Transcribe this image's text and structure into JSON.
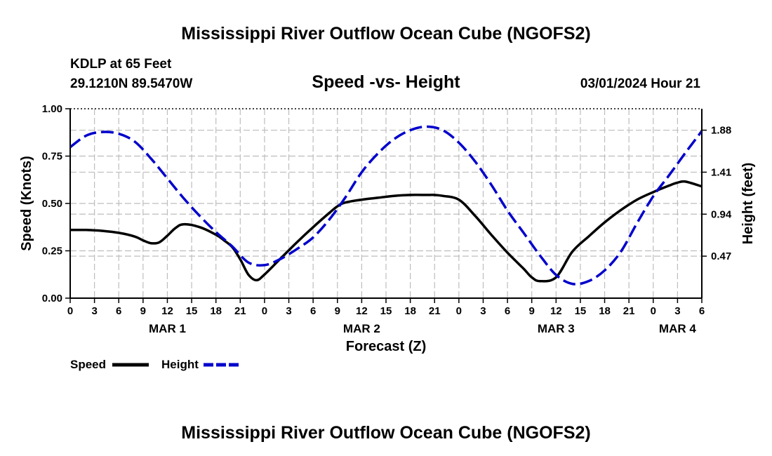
{
  "chart_data": {
    "type": "line",
    "title": "Mississippi River Outflow Ocean Cube (NGOFS2)",
    "footer_title": "Mississippi River Outflow Ocean Cube (NGOFS2)",
    "subtitle": "Speed -vs- Height",
    "station_line1": "KDLP at 65 Feet",
    "station_line2": "29.1210N  89.5470W",
    "run_time": "03/01/2024 Hour 21",
    "xlabel": "Forecast (Z)",
    "ylabel_left": "Speed (Knots)",
    "ylabel_right": "Height (feet)",
    "x_unit": "forecast hours from MAR 1 00Z",
    "xlim": [
      0,
      78
    ],
    "ylim_left": [
      0,
      1
    ],
    "ylim_right": [
      0.0,
      2.12
    ],
    "x_ticks": [
      {
        "x": 0,
        "label": "0"
      },
      {
        "x": 3,
        "label": "3"
      },
      {
        "x": 6,
        "label": "6"
      },
      {
        "x": 9,
        "label": "9"
      },
      {
        "x": 12,
        "label": "12"
      },
      {
        "x": 15,
        "label": "15"
      },
      {
        "x": 18,
        "label": "18"
      },
      {
        "x": 21,
        "label": "21"
      },
      {
        "x": 24,
        "label": "0"
      },
      {
        "x": 27,
        "label": "3"
      },
      {
        "x": 30,
        "label": "6"
      },
      {
        "x": 33,
        "label": "9"
      },
      {
        "x": 36,
        "label": "12"
      },
      {
        "x": 39,
        "label": "15"
      },
      {
        "x": 42,
        "label": "18"
      },
      {
        "x": 45,
        "label": "21"
      },
      {
        "x": 48,
        "label": "0"
      },
      {
        "x": 51,
        "label": "3"
      },
      {
        "x": 54,
        "label": "6"
      },
      {
        "x": 57,
        "label": "9"
      },
      {
        "x": 60,
        "label": "12"
      },
      {
        "x": 63,
        "label": "15"
      },
      {
        "x": 66,
        "label": "18"
      },
      {
        "x": 69,
        "label": "21"
      },
      {
        "x": 72,
        "label": "0"
      },
      {
        "x": 75,
        "label": "3"
      },
      {
        "x": 78,
        "label": "6"
      }
    ],
    "date_labels": [
      {
        "x": 12,
        "label": "MAR 1"
      },
      {
        "x": 36,
        "label": "MAR 2"
      },
      {
        "x": 60,
        "label": "MAR 3"
      },
      {
        "x": 75,
        "label": "MAR 4"
      }
    ],
    "y_ticks_left": [
      {
        "value": 0,
        "label": "0.00"
      },
      {
        "value": 0.25,
        "label": "0.25"
      },
      {
        "value": 0.5,
        "label": "0.50"
      },
      {
        "value": 0.75,
        "label": "0.75"
      },
      {
        "value": 1.0,
        "label": "1.00"
      }
    ],
    "y_ticks_right": [
      {
        "value": 0.47,
        "label": "0.47"
      },
      {
        "value": 0.94,
        "label": "0.94"
      },
      {
        "value": 1.41,
        "label": "1.41"
      },
      {
        "value": 1.88,
        "label": "1.88"
      }
    ],
    "grid": true,
    "legend_position": "bottom-left",
    "series": [
      {
        "name": "Speed",
        "axis": "left",
        "color": "#000000",
        "style": "solid",
        "x": [
          0,
          2,
          4,
          6,
          8,
          9,
          10,
          11,
          12,
          13,
          14,
          16,
          18,
          19,
          20,
          21,
          22,
          23,
          24,
          26,
          28,
          30,
          32,
          33,
          34,
          36,
          38,
          40,
          42,
          44,
          45,
          46,
          48,
          50,
          52,
          54,
          56,
          57,
          58,
          60,
          62,
          64,
          66,
          68,
          70,
          72,
          74,
          75,
          76,
          78
        ],
        "values": [
          0.36,
          0.36,
          0.355,
          0.345,
          0.325,
          0.305,
          0.29,
          0.295,
          0.33,
          0.37,
          0.39,
          0.375,
          0.335,
          0.305,
          0.27,
          0.205,
          0.125,
          0.095,
          0.125,
          0.21,
          0.295,
          0.375,
          0.45,
          0.485,
          0.505,
          0.52,
          0.53,
          0.54,
          0.545,
          0.545,
          0.545,
          0.54,
          0.52,
          0.435,
          0.335,
          0.24,
          0.155,
          0.11,
          0.09,
          0.11,
          0.245,
          0.325,
          0.4,
          0.465,
          0.52,
          0.56,
          0.595,
          0.61,
          0.615,
          0.59
        ]
      },
      {
        "name": "Height",
        "axis": "right",
        "color": "#0000cc",
        "style": "dashed",
        "x": [
          0,
          2,
          4,
          6,
          8,
          10,
          12,
          14,
          16,
          18,
          20,
          22,
          24,
          26,
          28,
          30,
          32,
          34,
          36,
          38,
          40,
          42,
          44,
          46,
          48,
          50,
          52,
          54,
          56,
          58,
          60,
          62,
          64,
          66,
          68,
          70,
          72,
          74,
          76,
          78
        ],
        "values": [
          1.69,
          1.82,
          1.86,
          1.84,
          1.75,
          1.56,
          1.34,
          1.12,
          0.92,
          0.74,
          0.58,
          0.4,
          0.37,
          0.44,
          0.55,
          0.68,
          0.88,
          1.13,
          1.41,
          1.62,
          1.78,
          1.88,
          1.92,
          1.88,
          1.74,
          1.53,
          1.27,
          0.98,
          0.73,
          0.48,
          0.26,
          0.16,
          0.19,
          0.31,
          0.52,
          0.84,
          1.14,
          1.38,
          1.63,
          1.87
        ]
      }
    ]
  }
}
